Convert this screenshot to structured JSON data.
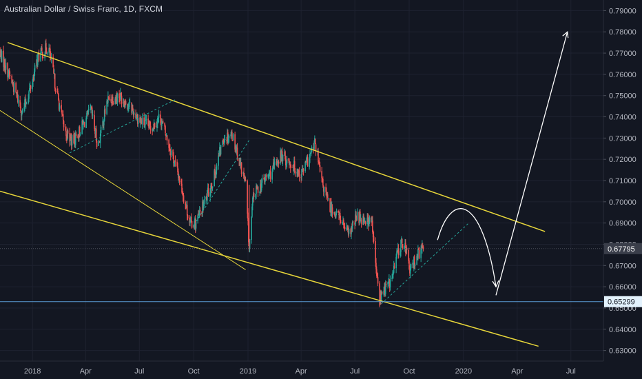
{
  "header": {
    "title": "Australian Dollar / Swiss Franc, 1D, FXCM"
  },
  "colors": {
    "background": "#131722",
    "grid": "#1e2230",
    "axis_text": "#b2b5be",
    "up": "#26a69a",
    "down": "#ef5350",
    "channel": "#e6d53a",
    "support_dashed": "#26a69a",
    "projection": "#ffffff",
    "level_line": "#5b9bd5",
    "price_tag_current": "#3a3e4a",
    "price_tag_level": "#e3f2fd"
  },
  "chart_data": {
    "type": "candlestick",
    "symbol": "Australian Dollar / Swiss Franc",
    "interval": "1D",
    "source": "FXCM",
    "y_ticks": [
      "0.79000",
      "0.78000",
      "0.77000",
      "0.76000",
      "0.75000",
      "0.74000",
      "0.73000",
      "0.72000",
      "0.71000",
      "0.70000",
      "0.69000",
      "0.68000",
      "0.67000",
      "0.66000",
      "0.65000",
      "0.64000",
      "0.63000"
    ],
    "x_ticks": [
      "2018",
      "Apr",
      "Jul",
      "Oct",
      "2019",
      "Apr",
      "Jul",
      "Oct",
      "2020",
      "Apr",
      "Jul"
    ],
    "ylim": [
      0.625,
      0.795
    ],
    "x_range": [
      "2017-11-07",
      "2020-08-25"
    ],
    "current_price": "0.67795",
    "level_price": "0.65299",
    "price_path": [
      [
        "2017-11-07",
        0.77
      ],
      [
        "2017-11-25",
        0.758
      ],
      [
        "2017-12-15",
        0.742
      ],
      [
        "2018-01-01",
        0.757
      ],
      [
        "2018-01-10",
        0.768
      ],
      [
        "2018-01-28",
        0.773
      ],
      [
        "2018-02-10",
        0.753
      ],
      [
        "2018-02-25",
        0.733
      ],
      [
        "2018-03-10",
        0.728
      ],
      [
        "2018-03-25",
        0.735
      ],
      [
        "2018-04-10",
        0.743
      ],
      [
        "2018-04-22",
        0.726
      ],
      [
        "2018-05-08",
        0.748
      ],
      [
        "2018-05-28",
        0.75
      ],
      [
        "2018-06-15",
        0.745
      ],
      [
        "2018-07-02",
        0.738
      ],
      [
        "2018-07-20",
        0.735
      ],
      [
        "2018-08-05",
        0.74
      ],
      [
        "2018-08-20",
        0.727
      ],
      [
        "2018-09-05",
        0.713
      ],
      [
        "2018-09-25",
        0.69
      ],
      [
        "2018-10-05",
        0.69
      ],
      [
        "2018-10-20",
        0.7
      ],
      [
        "2018-11-05",
        0.712
      ],
      [
        "2018-11-20",
        0.73
      ],
      [
        "2018-12-05",
        0.732
      ],
      [
        "2018-12-15",
        0.722
      ],
      [
        "2018-12-28",
        0.708
      ],
      [
        "2019-01-03",
        0.678
      ],
      [
        "2019-01-10",
        0.703
      ],
      [
        "2019-01-28",
        0.71
      ],
      [
        "2019-02-10",
        0.714
      ],
      [
        "2019-02-25",
        0.722
      ],
      [
        "2019-03-15",
        0.718
      ],
      [
        "2019-04-01",
        0.713
      ],
      [
        "2019-04-17",
        0.722
      ],
      [
        "2019-04-25",
        0.728
      ],
      [
        "2019-05-05",
        0.71
      ],
      [
        "2019-05-20",
        0.697
      ],
      [
        "2019-06-05",
        0.693
      ],
      [
        "2019-06-20",
        0.684
      ],
      [
        "2019-07-05",
        0.693
      ],
      [
        "2019-07-18",
        0.692
      ],
      [
        "2019-07-30",
        0.69
      ],
      [
        "2019-08-05",
        0.67
      ],
      [
        "2019-08-12",
        0.654
      ],
      [
        "2019-08-20",
        0.659
      ],
      [
        "2019-09-01",
        0.663
      ],
      [
        "2019-09-12",
        0.677
      ],
      [
        "2019-09-22",
        0.682
      ],
      [
        "2019-10-03",
        0.667
      ],
      [
        "2019-10-12",
        0.674
      ],
      [
        "2019-10-25",
        0.678
      ]
    ],
    "annotations": {
      "channel_upper": [
        [
          "2017-11-20",
          0.775
        ],
        [
          "2020-05-18",
          0.686
        ]
      ],
      "channel_lower": [
        [
          "2017-11-07",
          0.705
        ],
        [
          "2020-05-07",
          0.632
        ]
      ],
      "trend_line": [
        [
          "2017-11-07",
          0.743
        ],
        [
          "2018-12-28",
          0.668
        ]
      ],
      "dashed_support_1": [
        [
          "2018-03-05",
          0.723
        ],
        [
          "2018-08-30",
          0.748
        ]
      ],
      "dashed_support_2": [
        [
          "2018-10-01",
          0.689
        ],
        [
          "2019-01-03",
          0.729
        ]
      ],
      "dashed_support_3": [
        [
          "2019-08-15",
          0.652
        ],
        [
          "2020-01-10",
          0.69
        ]
      ],
      "projection_arc": [
        [
          "2019-11-18",
          0.682
        ],
        [
          "2020-01-03",
          0.697
        ],
        [
          "2020-02-25",
          0.66
        ]
      ],
      "projection_up": [
        [
          "2020-02-25",
          0.656
        ],
        [
          "2020-06-25",
          0.78
        ]
      ]
    }
  }
}
